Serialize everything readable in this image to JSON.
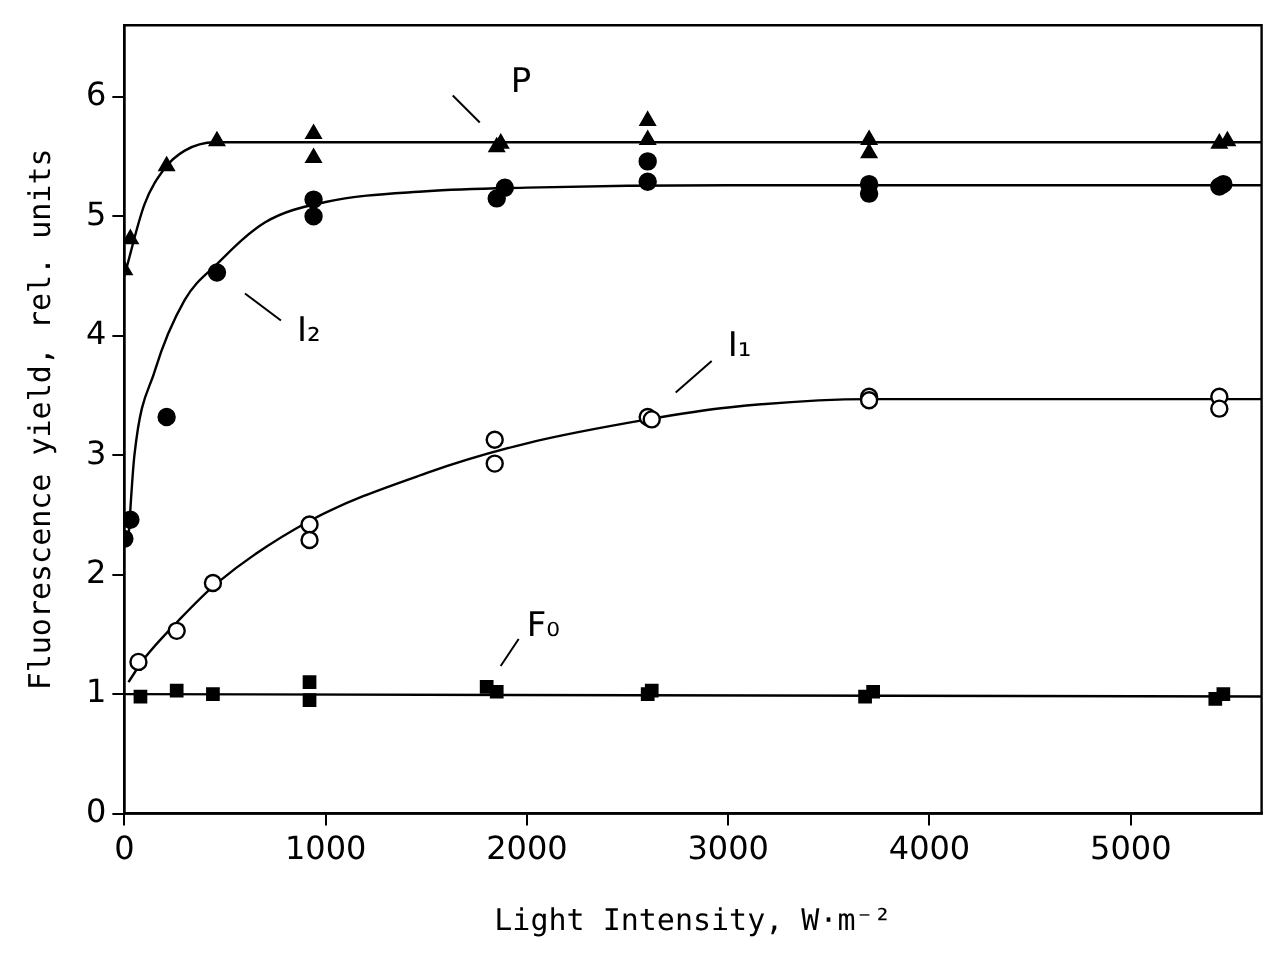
{
  "chart_data": {
    "type": "scatter",
    "xlabel": "Light Intensity, W·m⁻²",
    "ylabel": "Fluorescence yield, rel. units",
    "xlim": [
      0,
      5650
    ],
    "ylim": [
      0,
      6.6
    ],
    "xticks": [
      0,
      1000,
      2000,
      3000,
      4000,
      5000
    ],
    "yticks": [
      0,
      1,
      2,
      3,
      4,
      5,
      6
    ],
    "grid": false,
    "series": [
      {
        "name": "P",
        "marker": "triangle",
        "color": "#000000",
        "x": [
          0,
          30,
          210,
          460,
          940,
          940,
          1870,
          1850,
          2600,
          2600,
          3700,
          3700,
          5440,
          5480
        ],
        "values": [
          4.55,
          4.81,
          5.42,
          5.63,
          5.69,
          5.49,
          5.61,
          5.58,
          5.8,
          5.64,
          5.64,
          5.53,
          5.61,
          5.63
        ]
      },
      {
        "name": "I₂",
        "marker": "circle",
        "color": "#000000",
        "x": [
          0,
          30,
          210,
          460,
          940,
          940,
          1850,
          1890,
          2600,
          2600,
          3700,
          3700,
          5440,
          5460
        ],
        "values": [
          2.3,
          2.46,
          3.32,
          4.53,
          5.14,
          5.0,
          5.15,
          5.24,
          5.46,
          5.29,
          5.27,
          5.19,
          5.25,
          5.27
        ]
      },
      {
        "name": "I₁",
        "marker": "circle",
        "color": "#ffffff",
        "x": [
          70,
          260,
          440,
          920,
          920,
          1840,
          1840,
          2600,
          2620,
          3700,
          3700,
          5440,
          5440
        ],
        "values": [
          1.27,
          1.53,
          1.93,
          2.42,
          2.29,
          3.13,
          2.93,
          3.32,
          3.3,
          3.49,
          3.46,
          3.49,
          3.39
        ]
      },
      {
        "name": "F₀",
        "marker": "square",
        "color": "#000000",
        "x": [
          80,
          260,
          440,
          920,
          920,
          1800,
          1850,
          2600,
          2620,
          3680,
          3720,
          5420,
          5460
        ],
        "values": [
          0.98,
          1.03,
          1.0,
          1.1,
          0.95,
          1.06,
          1.02,
          1.0,
          1.03,
          0.98,
          1.02,
          0.96,
          1.0
        ]
      },
      {
        "type": "line",
        "color": "#000000",
        "x": [
          0,
          100,
          200,
          300,
          450,
          1000,
          5650
        ],
        "values": [
          4.5,
          5.1,
          5.4,
          5.55,
          5.62,
          5.62,
          5.62
        ]
      },
      {
        "type": "line",
        "color": "#000000",
        "x": [
          20,
          50,
          150,
          300,
          460,
          700,
          1000,
          1500,
          2000,
          3000,
          5650
        ],
        "values": [
          2.3,
          3.0,
          3.7,
          4.3,
          4.6,
          4.95,
          5.12,
          5.21,
          5.24,
          5.26,
          5.26
        ]
      },
      {
        "type": "line",
        "color": "#000000",
        "x": [
          20,
          100,
          260,
          460,
          920,
          1500,
          2000,
          2600,
          3000,
          3700,
          5650
        ],
        "values": [
          1.1,
          1.3,
          1.6,
          1.93,
          2.45,
          2.85,
          3.1,
          3.3,
          3.4,
          3.47,
          3.47
        ]
      },
      {
        "type": "line",
        "color": "#000000",
        "x": [
          0,
          5650
        ],
        "values": [
          1.0,
          0.98
        ]
      }
    ]
  }
}
